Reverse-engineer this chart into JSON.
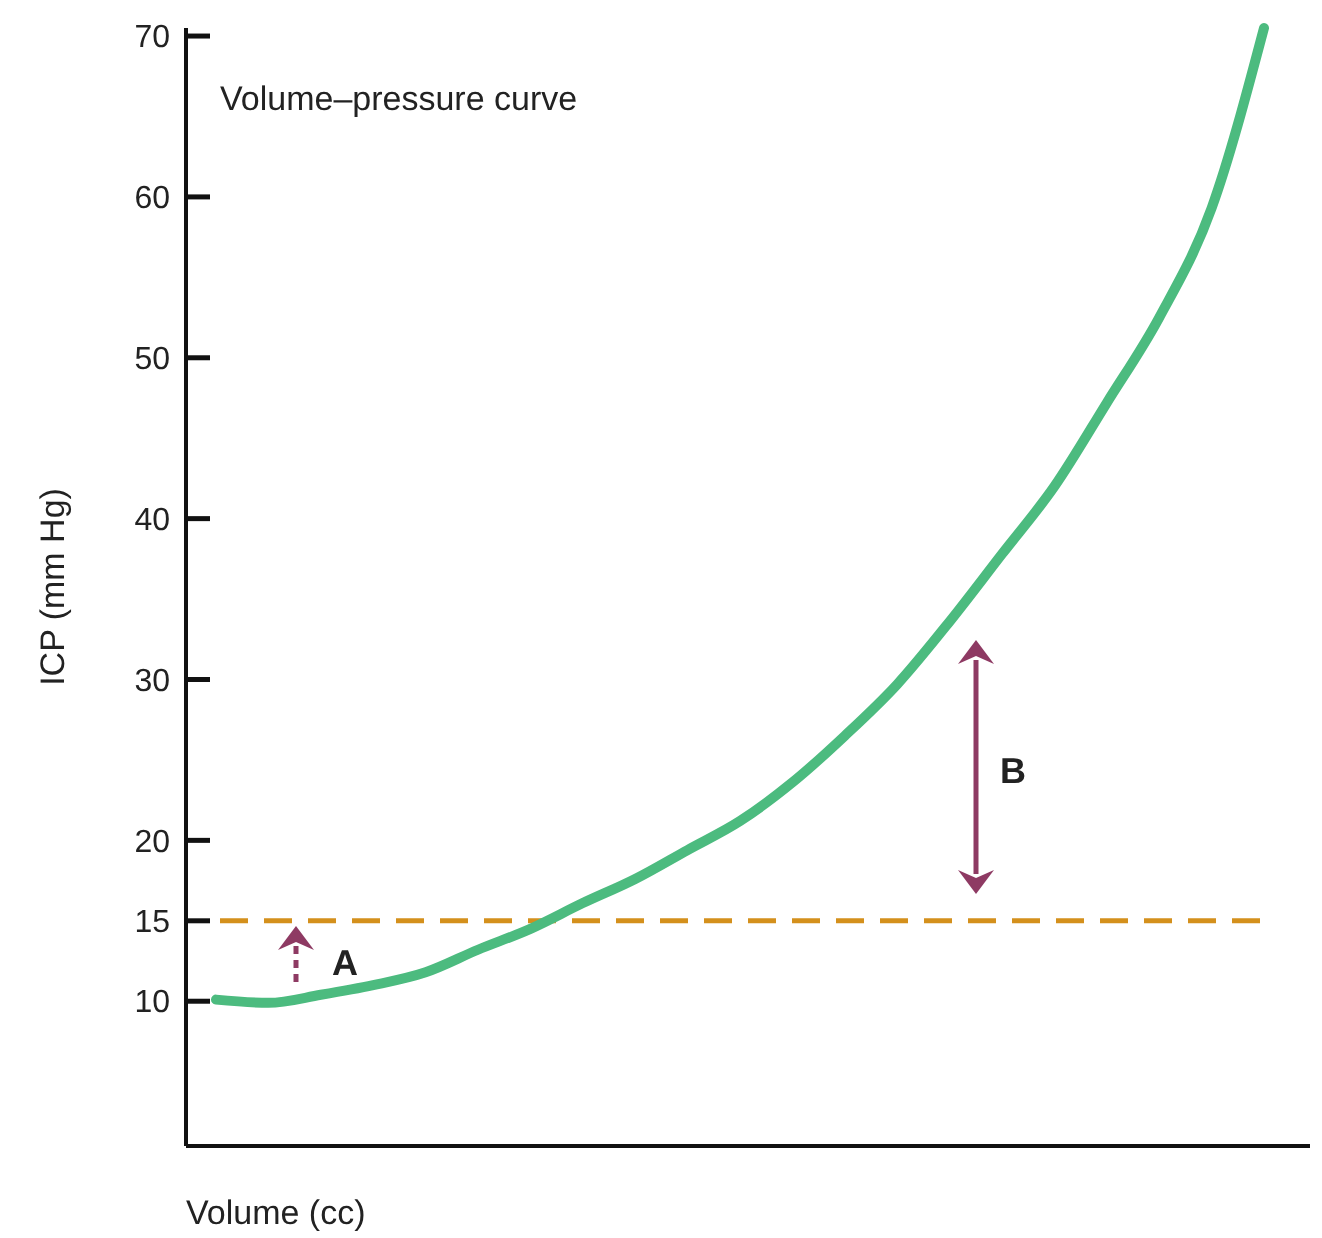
{
  "chart_data": {
    "type": "line",
    "title": "Volume–pressure curve",
    "xlabel": "Volume (cc)",
    "ylabel": "ICP (mm Hg)",
    "categories": [
      null,
      null,
      null,
      null,
      null,
      null,
      null,
      null,
      null,
      null,
      null,
      null,
      null,
      null,
      null,
      null,
      null,
      null,
      null,
      null,
      null
    ],
    "series": [
      {
        "color": "#4cbb7f",
        "values": [
          10.1,
          9.9,
          10.4,
          11,
          11.8,
          13.2,
          14.5,
          16.1,
          17.6,
          19.4,
          21.2,
          23.6,
          26.5,
          29.7,
          33.6,
          37.8,
          42,
          47.2,
          52.5,
          59.3,
          70.5
        ]
      }
    ],
    "ylim": [
      1,
      70.5
    ],
    "yticks": [
      10,
      15,
      20,
      30,
      40,
      50,
      60,
      70
    ],
    "ref_lines": [
      {
        "axis": "y",
        "value": 15,
        "color": "#d4901c",
        "line_style": "dashed"
      }
    ],
    "annotations": [
      "A",
      "B"
    ],
    "grid": false,
    "marker": "none",
    "line_style": "solid"
  }
}
